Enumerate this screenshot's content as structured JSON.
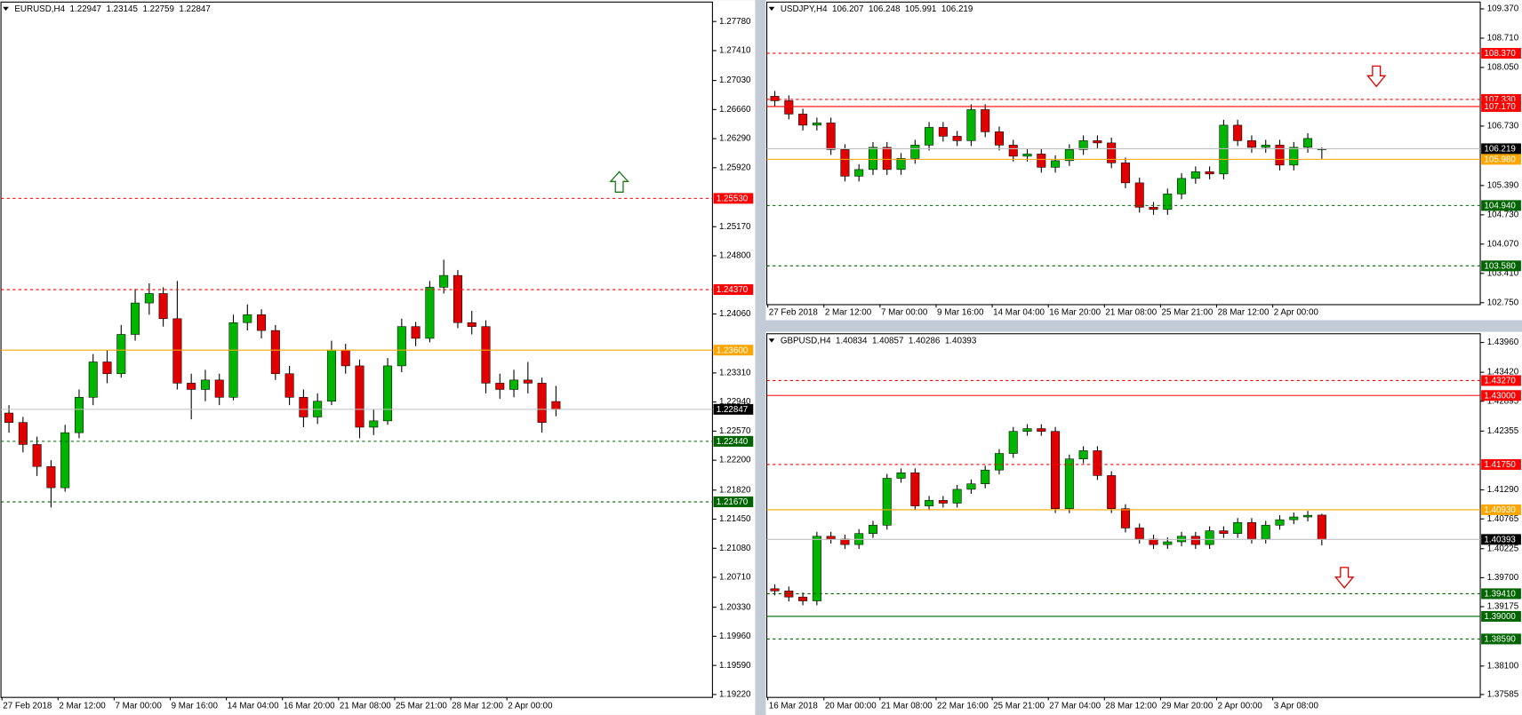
{
  "chart_data": [
    {
      "type": "candlestick",
      "title": "EURUSD,H4",
      "quote": [
        1.22947,
        1.23145,
        1.22759,
        1.22847
      ],
      "up_color": "#00b400",
      "down_color": "#e00000",
      "grid": false,
      "categories": [
        "27 Feb 2018",
        null,
        null,
        null,
        "2 Mar 12:00",
        null,
        null,
        null,
        "7 Mar 00:00",
        null,
        null,
        null,
        "9 Mar 16:00",
        null,
        null,
        null,
        "14 Mar 04:00",
        null,
        null,
        null,
        "16 Mar 20:00",
        null,
        null,
        null,
        "21 Mar 08:00",
        null,
        null,
        null,
        "25 Mar 21:00",
        null,
        null,
        null,
        "28 Mar 12:00",
        null,
        null,
        null,
        "2 Apr 00:00",
        null,
        null,
        null
      ],
      "open": [
        1.228,
        1.2268,
        1.224,
        1.2212,
        1.2185,
        1.2255,
        1.23,
        1.2345,
        1.233,
        1.238,
        1.242,
        1.2432,
        1.24,
        1.2318,
        1.231,
        1.2322,
        1.23,
        1.2395,
        1.2405,
        1.2385,
        1.233,
        1.23,
        1.2275,
        1.2295,
        1.236,
        1.234,
        1.2262,
        1.227,
        1.234,
        1.239,
        1.2375,
        1.244,
        1.2455,
        1.2395,
        1.239,
        1.2318,
        1.231,
        1.2322,
        1.2318,
        1.22947
      ],
      "high": [
        1.229,
        1.2275,
        1.225,
        1.222,
        1.2265,
        1.231,
        1.2355,
        1.236,
        1.2392,
        1.2438,
        1.2445,
        1.244,
        1.2448,
        1.233,
        1.2335,
        1.233,
        1.2405,
        1.2418,
        1.2412,
        1.2392,
        1.234,
        1.231,
        1.2305,
        1.2372,
        1.2368,
        1.2348,
        1.2285,
        1.235,
        1.24,
        1.2396,
        1.2448,
        1.2475,
        1.2462,
        1.241,
        1.2398,
        1.233,
        1.2335,
        1.2345,
        1.2325,
        1.23145
      ],
      "low": [
        1.2255,
        1.223,
        1.22,
        1.216,
        1.218,
        1.2248,
        1.229,
        1.2318,
        1.2325,
        1.2372,
        1.2405,
        1.239,
        1.231,
        1.2272,
        1.2295,
        1.229,
        1.2296,
        1.2385,
        1.2375,
        1.2322,
        1.229,
        1.2262,
        1.2266,
        1.229,
        1.233,
        1.2248,
        1.2252,
        1.2265,
        1.2332,
        1.2365,
        1.237,
        1.2432,
        1.2388,
        1.238,
        1.2305,
        1.2298,
        1.23,
        1.2305,
        1.2255,
        1.22759
      ],
      "close": [
        1.2268,
        1.224,
        1.2212,
        1.2185,
        1.2255,
        1.23,
        1.2345,
        1.233,
        1.238,
        1.242,
        1.2432,
        1.24,
        1.2318,
        1.231,
        1.2322,
        1.23,
        1.2395,
        1.2405,
        1.2385,
        1.233,
        1.23,
        1.2275,
        1.2295,
        1.236,
        1.234,
        1.2262,
        1.227,
        1.234,
        1.239,
        1.2375,
        1.244,
        1.2455,
        1.2395,
        1.239,
        1.2318,
        1.231,
        1.2322,
        1.2318,
        1.2268,
        1.22847
      ],
      "ylim": [
        1.19183,
        1.28027
      ],
      "yticks": [
        {
          "value": 1.2778,
          "label": "1.27780"
        },
        {
          "value": 1.2741,
          "label": "1.27410"
        },
        {
          "value": 1.2703,
          "label": "1.27030"
        },
        {
          "value": 1.2666,
          "label": "1.26660"
        },
        {
          "value": 1.2629,
          "label": "1.26290"
        },
        {
          "value": 1.2592,
          "label": "1.25920"
        },
        {
          "value": 1.2517,
          "label": "1.25170"
        },
        {
          "value": 1.248,
          "label": "1.24800"
        },
        {
          "value": 1.2406,
          "label": "1.24060"
        },
        {
          "value": 1.2331,
          "label": "1.23310"
        },
        {
          "value": 1.2294,
          "label": "1.22940"
        },
        {
          "value": 1.2257,
          "label": "1.22570"
        },
        {
          "value": 1.222,
          "label": "1.22200"
        },
        {
          "value": 1.2182,
          "label": "1.21820"
        },
        {
          "value": 1.2145,
          "label": "1.21450"
        },
        {
          "value": 1.2108,
          "label": "1.21080"
        },
        {
          "value": 1.2071,
          "label": "1.20710"
        },
        {
          "value": 1.2033,
          "label": "1.20330"
        },
        {
          "value": 1.1996,
          "label": "1.19960"
        },
        {
          "value": 1.1959,
          "label": "1.19590"
        },
        {
          "value": 1.1922,
          "label": "1.19220"
        }
      ],
      "levels": [
        {
          "value": 1.2553,
          "label": "1.25530",
          "color": "#ff0000",
          "style": "dashed"
        },
        {
          "value": 1.2437,
          "label": "1.24370",
          "color": "#ff0000",
          "style": "dashed"
        },
        {
          "value": 1.236,
          "label": "1.23600",
          "color": "#ffa500",
          "style": "solid"
        },
        {
          "value": 1.22847,
          "label": "1.22847",
          "color": "#c0c0c0",
          "label_color": "#000000",
          "style": "solid"
        },
        {
          "value": 1.2244,
          "label": "1.22440",
          "color": "#006400",
          "style": "dashed"
        },
        {
          "value": 1.2167,
          "label": "1.21670",
          "color": "#006400",
          "style": "dashed"
        }
      ]
    },
    {
      "type": "candlestick",
      "title": "USDJPY,H4",
      "quote": [
        106.207,
        106.248,
        105.991,
        106.219
      ],
      "up_color": "#00b400",
      "down_color": "#e00000",
      "grid": false,
      "categories": [
        "27 Feb 2018",
        null,
        null,
        null,
        "2 Mar 12:00",
        null,
        null,
        null,
        "7 Mar 00:00",
        null,
        null,
        null,
        "9 Mar 16:00",
        null,
        null,
        null,
        "14 Mar 04:00",
        null,
        null,
        null,
        "16 Mar 20:00",
        null,
        null,
        null,
        "21 Mar 08:00",
        null,
        null,
        null,
        "25 Mar 21:00",
        null,
        null,
        null,
        "28 Mar 12:00",
        null,
        null,
        null,
        "2 Apr 00:00",
        null,
        null,
        null
      ],
      "open": [
        107.4,
        107.3,
        107.0,
        106.75,
        106.8,
        106.2,
        105.6,
        105.75,
        106.25,
        105.75,
        106.0,
        106.3,
        106.7,
        106.5,
        106.4,
        107.1,
        106.6,
        106.3,
        106.05,
        106.1,
        105.8,
        105.95,
        106.2,
        106.4,
        106.35,
        105.9,
        105.45,
        104.9,
        104.85,
        105.2,
        105.55,
        105.7,
        105.65,
        106.75,
        106.4,
        106.25,
        106.3,
        105.85,
        106.25,
        106.207
      ],
      "high": [
        107.52,
        107.42,
        107.12,
        106.92,
        106.92,
        106.32,
        105.87,
        106.37,
        106.37,
        106.12,
        106.42,
        106.82,
        106.82,
        106.62,
        107.22,
        107.22,
        106.72,
        106.42,
        106.22,
        106.22,
        106.07,
        106.32,
        106.52,
        106.52,
        106.47,
        106.02,
        105.57,
        105.02,
        105.32,
        105.67,
        105.82,
        105.82,
        106.87,
        106.87,
        106.52,
        106.42,
        106.42,
        106.37,
        106.57,
        106.248
      ],
      "low": [
        107.18,
        106.88,
        106.63,
        106.63,
        106.08,
        105.48,
        105.48,
        105.63,
        105.63,
        105.63,
        105.88,
        106.18,
        106.38,
        106.28,
        106.28,
        106.48,
        106.18,
        105.93,
        105.93,
        105.68,
        105.68,
        105.83,
        106.08,
        106.23,
        105.78,
        105.33,
        104.78,
        104.73,
        104.73,
        105.08,
        105.43,
        105.53,
        105.53,
        106.28,
        106.13,
        106.13,
        105.73,
        105.73,
        106.13,
        105.991
      ],
      "close": [
        107.3,
        107.0,
        106.75,
        106.8,
        106.2,
        105.6,
        105.75,
        106.25,
        105.75,
        106.0,
        106.3,
        106.7,
        106.5,
        106.4,
        107.1,
        106.6,
        106.3,
        106.05,
        106.1,
        105.8,
        105.95,
        106.2,
        106.4,
        106.35,
        105.9,
        105.45,
        104.9,
        104.85,
        105.2,
        105.55,
        105.7,
        105.65,
        106.75,
        106.4,
        106.25,
        106.3,
        105.85,
        106.25,
        106.45,
        106.219
      ],
      "ylim": [
        102.706,
        109.523
      ],
      "yticks": [
        {
          "value": 109.37,
          "label": "109.370"
        },
        {
          "value": 108.71,
          "label": "108.710"
        },
        {
          "value": 108.05,
          "label": "108.050"
        },
        {
          "value": 106.73,
          "label": "106.730"
        },
        {
          "value": 105.39,
          "label": "105.390"
        },
        {
          "value": 104.73,
          "label": "104.730"
        },
        {
          "value": 104.07,
          "label": "104.070"
        },
        {
          "value": 103.41,
          "label": "103.410"
        },
        {
          "value": 102.75,
          "label": "102.750"
        }
      ],
      "levels": [
        {
          "value": 108.37,
          "label": "108.370",
          "color": "#ff0000",
          "style": "dashed"
        },
        {
          "value": 107.33,
          "label": "107.330",
          "color": "#ff0000",
          "style": "dashed"
        },
        {
          "value": 107.17,
          "label": "107.170",
          "color": "#ff0000",
          "style": "solid"
        },
        {
          "value": 106.219,
          "label_color": "#000000",
          "color": "#c0c0c0",
          "style": "solid",
          "label": "106.219"
        },
        {
          "value": 105.98,
          "label": "105.980",
          "color": "#ffa500",
          "style": "solid"
        },
        {
          "value": 104.94,
          "label": "104.940",
          "color": "#006400",
          "style": "dashed"
        },
        {
          "value": 103.58,
          "label": "103.580",
          "color": "#006400",
          "style": "dashed"
        }
      ]
    },
    {
      "type": "candlestick",
      "title": "GBPUSD,H4",
      "quote": [
        1.40834,
        1.40857,
        1.40286,
        1.40393
      ],
      "up_color": "#00b400",
      "down_color": "#e00000",
      "grid": false,
      "categories": [
        "16 Mar 2018",
        null,
        null,
        null,
        "20 Mar 00:00",
        null,
        null,
        null,
        "21 Mar 08:00",
        null,
        null,
        null,
        "22 Mar 16:00",
        null,
        null,
        null,
        "25 Mar 21:00",
        null,
        null,
        null,
        "27 Mar 04:00",
        null,
        null,
        null,
        "28 Mar 12:00",
        null,
        null,
        null,
        "29 Mar 20:00",
        null,
        null,
        null,
        "2 Apr 00:00",
        null,
        null,
        null,
        "3 Apr 08:00",
        null,
        null,
        null
      ],
      "open": [
        1.395,
        1.3946,
        1.3935,
        1.3928,
        1.4045,
        1.404,
        1.403,
        1.405,
        1.4065,
        1.415,
        1.416,
        1.41,
        1.411,
        1.4105,
        1.413,
        1.414,
        1.4165,
        1.4195,
        1.4235,
        1.424,
        1.4235,
        1.4095,
        1.4185,
        1.42,
        1.4155,
        1.4095,
        1.406,
        1.404,
        1.403,
        1.4035,
        1.4045,
        1.403,
        1.4055,
        1.405,
        1.407,
        1.404,
        1.4065,
        1.4075,
        1.408,
        1.40834
      ],
      "high": [
        1.3958,
        1.3954,
        1.3943,
        1.4053,
        1.4053,
        1.4048,
        1.4058,
        1.4073,
        1.4158,
        1.4168,
        1.4168,
        1.4118,
        1.4118,
        1.4138,
        1.4148,
        1.4173,
        1.4203,
        1.4243,
        1.4248,
        1.4248,
        1.4243,
        1.4193,
        1.4208,
        1.4208,
        1.4163,
        1.4103,
        1.4068,
        1.4048,
        1.4043,
        1.4053,
        1.4053,
        1.4063,
        1.4063,
        1.4078,
        1.4078,
        1.4073,
        1.4083,
        1.4088,
        1.4091,
        1.40857
      ],
      "low": [
        1.3938,
        1.3927,
        1.392,
        1.392,
        1.4032,
        1.4022,
        1.4022,
        1.4042,
        1.4057,
        1.4142,
        1.4092,
        1.4092,
        1.4097,
        1.4097,
        1.4122,
        1.4132,
        1.4157,
        1.4187,
        1.4227,
        1.4227,
        1.4087,
        1.4087,
        1.4177,
        1.4147,
        1.4087,
        1.4052,
        1.4032,
        1.4022,
        1.4022,
        1.4027,
        1.4022,
        1.4022,
        1.4042,
        1.4042,
        1.4032,
        1.4032,
        1.4057,
        1.4067,
        1.4072,
        1.40286
      ],
      "close": [
        1.3946,
        1.3935,
        1.3928,
        1.4045,
        1.404,
        1.403,
        1.405,
        1.4065,
        1.415,
        1.416,
        1.41,
        1.411,
        1.4105,
        1.413,
        1.414,
        1.4165,
        1.4195,
        1.4235,
        1.424,
        1.4235,
        1.4095,
        1.4185,
        1.42,
        1.4155,
        1.4095,
        1.406,
        1.404,
        1.403,
        1.4035,
        1.4045,
        1.403,
        1.4055,
        1.405,
        1.407,
        1.404,
        1.4065,
        1.4075,
        1.408,
        1.4083,
        1.40393
      ],
      "ylim": [
        1.37532,
        1.44118
      ],
      "yticks": [
        {
          "value": 1.4396,
          "label": "1.43960"
        },
        {
          "value": 1.4342,
          "label": "1.43420"
        },
        {
          "value": 1.42895,
          "label": "1.42895"
        },
        {
          "value": 1.42355,
          "label": "1.42355"
        },
        {
          "value": 1.4129,
          "label": "1.41290"
        },
        {
          "value": 1.40765,
          "label": "1.40765"
        },
        {
          "value": 1.40225,
          "label": "1.40225"
        },
        {
          "value": 1.397,
          "label": "1.39700"
        },
        {
          "value": 1.39175,
          "label": "1.39175"
        },
        {
          "value": 1.381,
          "label": "1.38100"
        },
        {
          "value": 1.37585,
          "label": "1.37585"
        }
      ],
      "levels": [
        {
          "value": 1.4327,
          "label": "1.43270",
          "color": "#ff0000",
          "style": "dashed"
        },
        {
          "value": 1.43,
          "label": "1.43000",
          "color": "#ff0000",
          "style": "solid"
        },
        {
          "value": 1.4175,
          "label": "1.41750",
          "color": "#ff0000",
          "style": "dashed"
        },
        {
          "value": 1.4093,
          "label": "1.40930",
          "color": "#ffa500",
          "style": "solid"
        },
        {
          "value": 1.40393,
          "label": "1.40393",
          "color": "#c0c0c0",
          "label_color": "#000000",
          "style": "solid"
        },
        {
          "value": 1.3941,
          "label": "1.39410",
          "color": "#006400",
          "style": "dashed"
        },
        {
          "value": 1.39,
          "label": "1.39000",
          "color": "#006400",
          "style": "solid"
        },
        {
          "value": 1.3859,
          "label": "1.38590",
          "color": "#006400",
          "style": "dashed"
        }
      ]
    }
  ]
}
